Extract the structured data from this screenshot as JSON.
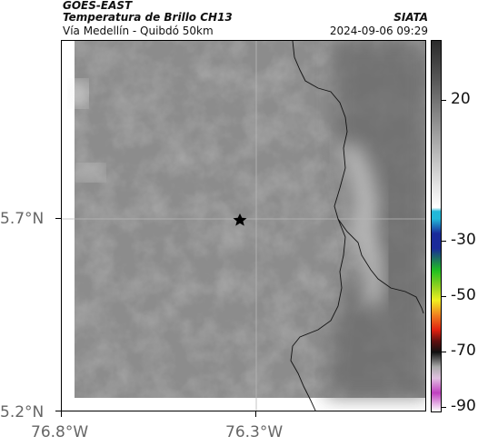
{
  "header": {
    "agency": "GOES-EAST",
    "product": "Temperatura de Brillo CH13",
    "region": "Vía Medellín - Quibdó 50km",
    "organization": "SIATA",
    "datetime": "2024-09-06 09:29"
  },
  "map": {
    "lat_ticks": [
      "5.7°N",
      "5.2°N"
    ],
    "lon_ticks": [
      "76.8°W",
      "76.3°W"
    ],
    "marker": "star-icon"
  },
  "colorbar": {
    "labels": [
      "20",
      "-30",
      "-50",
      "-70",
      "-90"
    ],
    "colors": {
      "gray_dark": "#2b2b2b",
      "gray_light": "#e8e8e8",
      "cyan": "#22b8d8",
      "blue": "#1a2a9a",
      "green": "#20c020",
      "yellow": "#f0f020",
      "red": "#e02010",
      "black": "#111111",
      "magenta": "#c040c0"
    }
  }
}
